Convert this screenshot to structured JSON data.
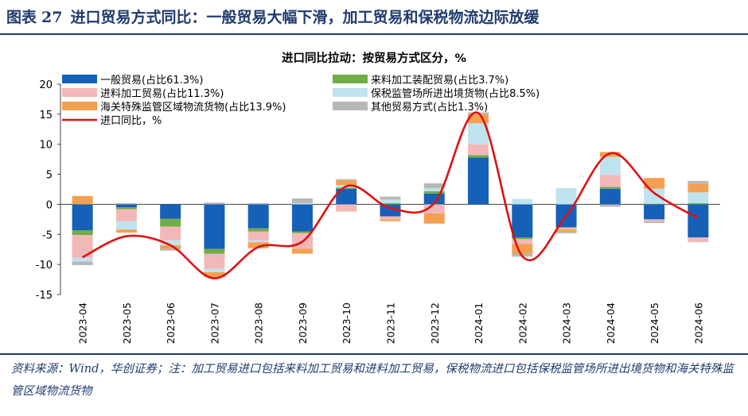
{
  "figure": {
    "label": "图表",
    "number": "27",
    "title": "进口贸易方式同比：一般贸易大幅下滑，加工贸易和保税物流边际放缓"
  },
  "source_note": "资料来源：Wind，华创证券；注：加工贸易进口包括来料加工贸易和进料加工贸易，保税物流进口包括保税监管场所进出境货物和海关特殊监管区域物流货物",
  "chart_data": {
    "type": "bar",
    "stacked": true,
    "title": "进口同比拉动：按贸易方式区分，%",
    "categories": [
      "2023-04",
      "2023-05",
      "2023-06",
      "2023-07",
      "2023-08",
      "2023-09",
      "2023-10",
      "2023-11",
      "2023-12",
      "2024-01",
      "2024-02",
      "2024-03",
      "2024-04",
      "2024-05",
      "2024-06"
    ],
    "ylim": [
      -15,
      20
    ],
    "yticks": [
      -15,
      -10,
      -5,
      0,
      5,
      10,
      15,
      20
    ],
    "grid": false,
    "legend_position": "top",
    "series": [
      {
        "name": "一般贸易(占比61.3%)",
        "color": "#1660b8",
        "values": [
          -4.3,
          -0.5,
          -2.4,
          -7.4,
          -4.0,
          -4.5,
          2.6,
          -2.0,
          1.8,
          7.8,
          -5.5,
          -3.8,
          2.6,
          -2.5,
          -5.5
        ]
      },
      {
        "name": "来料加工装配贸易(占比3.7%)",
        "color": "#70ad47",
        "values": [
          -0.8,
          -0.3,
          -1.3,
          -0.8,
          -0.5,
          -0.3,
          0.2,
          0.2,
          0.4,
          0.4,
          -0.3,
          -0.1,
          0.3,
          0.1,
          0.2
        ]
      },
      {
        "name": "进料加工贸易(占比11.3%)",
        "color": "#f2b8b8",
        "values": [
          -3.8,
          -2.0,
          -2.3,
          -2.5,
          -1.5,
          -2.6,
          -1.2,
          -0.5,
          -1.5,
          1.8,
          -0.8,
          -0.3,
          2.0,
          -0.3,
          -0.8
        ]
      },
      {
        "name": "保税监管场所进出境货物(占比8.5%)",
        "color": "#bfe3ee",
        "values": [
          -0.6,
          -1.4,
          -0.8,
          -0.6,
          -0.3,
          0.2,
          0.4,
          0.6,
          0.5,
          3.5,
          0.9,
          2.7,
          3.0,
          2.5,
          1.8
        ]
      },
      {
        "name": "海关特殊监管区域物流货物(占比13.9%)",
        "color": "#f4a050",
        "values": [
          1.4,
          -0.5,
          -0.6,
          -0.8,
          -1.0,
          -0.8,
          0.8,
          -0.3,
          -1.7,
          1.5,
          -1.6,
          -0.3,
          0.8,
          1.8,
          1.4
        ]
      },
      {
        "name": "其他贸易方式(占比1.3%)",
        "color": "#b8b8b8",
        "values": [
          -0.6,
          0.2,
          -0.3,
          0.3,
          0.2,
          0.8,
          0.2,
          0.5,
          0.8,
          0.3,
          -0.5,
          -0.3,
          -0.4,
          -0.3,
          0.5
        ]
      }
    ],
    "line": {
      "name": "进口同比，%",
      "color": "#e01010",
      "values": [
        -8.8,
        -5.3,
        -6.8,
        -12.3,
        -7.1,
        -6.2,
        3.0,
        -0.6,
        0.2,
        15.2,
        -8.6,
        -1.9,
        8.5,
        1.9,
        -2.3
      ]
    }
  }
}
